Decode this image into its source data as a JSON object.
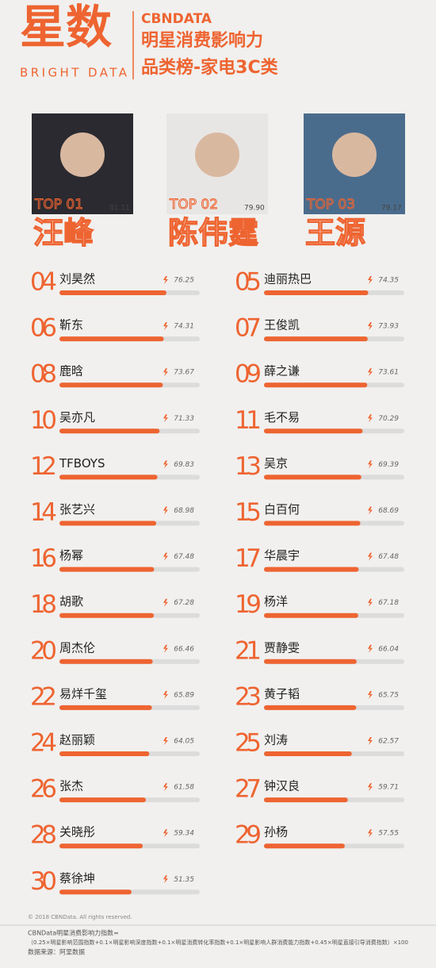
{
  "header": {
    "logo": "星数",
    "logo_sub": "BRIGHT DATA",
    "brand": "CBNDATA",
    "title_line1": "明星消费影响力",
    "title_line2": "品类榜-家电3C类"
  },
  "xlim": [
    0,
    100
  ],
  "top3": [
    {
      "label": "TOP 01",
      "name": "汪峰",
      "value": 81.11
    },
    {
      "label": "TOP 02",
      "name": "陈伟霆",
      "value": 79.9,
      "value_label": "79.90"
    },
    {
      "label": "TOP 03",
      "name": "王源",
      "value": 79.17
    }
  ],
  "ranking": [
    {
      "rank": "04",
      "name": "刘昊然",
      "value": 76.25
    },
    {
      "rank": "05",
      "name": "迪丽热巴",
      "value": 74.35
    },
    {
      "rank": "06",
      "name": "靳东",
      "value": 74.31
    },
    {
      "rank": "07",
      "name": "王俊凯",
      "value": 73.93
    },
    {
      "rank": "08",
      "name": "鹿晗",
      "value": 73.67
    },
    {
      "rank": "09",
      "name": "薛之谦",
      "value": 73.61
    },
    {
      "rank": "10",
      "name": "吴亦凡",
      "value": 71.33
    },
    {
      "rank": "11",
      "name": "毛不易",
      "value": 70.29
    },
    {
      "rank": "12",
      "name": "TFBOYS",
      "value": 69.83
    },
    {
      "rank": "13",
      "name": "吴京",
      "value": 69.39
    },
    {
      "rank": "14",
      "name": "张艺兴",
      "value": 68.98
    },
    {
      "rank": "15",
      "name": "白百何",
      "value": 68.69
    },
    {
      "rank": "16",
      "name": "杨幂",
      "value": 67.48
    },
    {
      "rank": "17",
      "name": "华晨宇",
      "value": 67.48
    },
    {
      "rank": "18",
      "name": "胡歌",
      "value": 67.28
    },
    {
      "rank": "19",
      "name": "杨洋",
      "value": 67.18
    },
    {
      "rank": "20",
      "name": "周杰伦",
      "value": 66.46
    },
    {
      "rank": "21",
      "name": "贾静雯",
      "value": 66.04
    },
    {
      "rank": "22",
      "name": "易烊千玺",
      "value": 65.89
    },
    {
      "rank": "23",
      "name": "黄子韬",
      "value": 65.75
    },
    {
      "rank": "24",
      "name": "赵丽颖",
      "value": 64.05
    },
    {
      "rank": "25",
      "name": "刘涛",
      "value": 62.57
    },
    {
      "rank": "26",
      "name": "张杰",
      "value": 61.58
    },
    {
      "rank": "27",
      "name": "钟汉良",
      "value": 59.71
    },
    {
      "rank": "28",
      "name": "关晓彤",
      "value": 59.34
    },
    {
      "rank": "29",
      "name": "孙杨",
      "value": 57.55
    },
    {
      "rank": "30",
      "name": "蔡徐坤",
      "value": 51.35
    }
  ],
  "footer": {
    "copyright": "© 2018 CBNData. All rights reserved.",
    "formula_title": "CBNData明星消费影响力指数=",
    "formula": "（0.25×明星影响范围指数+0.1×明星影响深度指数+0.1×明星消费转化率指数+0.1×明星影响人群消费能力指数+0.45×明星直接引导消费指数）×100",
    "source": "数据来源：阿里数据"
  }
}
